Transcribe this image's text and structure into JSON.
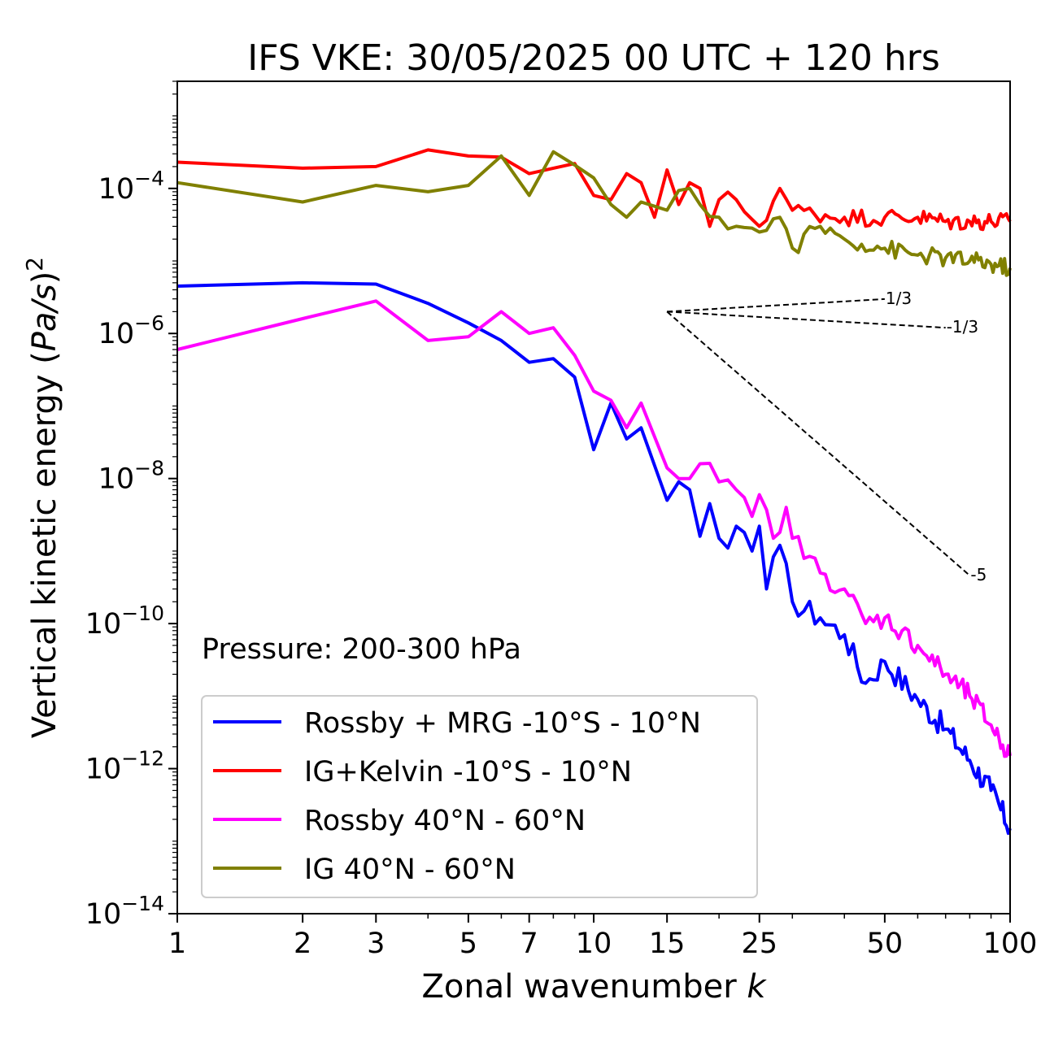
{
  "chart_data": {
    "type": "line",
    "title": "IFS VKE: 30/05/2025 00 UTC + 120 hrs",
    "xlabel": "Zonal wavenumber k",
    "ylabel": "Vertical kinetic energy (Pa/s)²",
    "xscale": "log",
    "yscale": "log",
    "xlim": [
      1,
      100
    ],
    "ylim": [
      1e-14,
      0.003
    ],
    "x_ticks": [
      1,
      2,
      3,
      5,
      7,
      10,
      15,
      25,
      50,
      100
    ],
    "x_tick_labels": [
      "1",
      "2",
      "3",
      "5",
      "7",
      "10",
      "15",
      "25",
      "50",
      "100"
    ],
    "y_ticks": [
      {
        "value": 0.0001,
        "base": "10",
        "exp": "−4"
      },
      {
        "value": 1e-06,
        "base": "10",
        "exp": "−6"
      },
      {
        "value": 1e-08,
        "base": "10",
        "exp": "−8"
      },
      {
        "value": 1e-10,
        "base": "10",
        "exp": "−10"
      },
      {
        "value": 1e-12,
        "base": "10",
        "exp": "−12"
      },
      {
        "value": 1e-14,
        "base": "10",
        "exp": "−14"
      }
    ],
    "annotation": "Pressure: 200-300 hPa",
    "legend_position": "lower-left",
    "series": [
      {
        "name": "Rossby + MRG -10°S - 10°N",
        "color": "#0000ff",
        "anchors": [
          [
            1,
            4.5e-06
          ],
          [
            2,
            5e-06
          ],
          [
            3,
            4.8e-06
          ],
          [
            4,
            2.6e-06
          ],
          [
            5,
            1.4e-06
          ],
          [
            6,
            8e-07
          ],
          [
            7,
            4e-07
          ],
          [
            8,
            4.5e-07
          ],
          [
            9,
            2.5e-07
          ],
          [
            10,
            2.5e-08
          ],
          [
            11,
            1.1e-07
          ],
          [
            12,
            3.5e-08
          ],
          [
            13,
            5e-08
          ],
          [
            15,
            5e-09
          ],
          [
            16,
            9e-09
          ],
          [
            17,
            7e-09
          ],
          [
            18,
            1.6e-09
          ],
          [
            19,
            4.5e-09
          ],
          [
            20,
            1.5e-09
          ],
          [
            21,
            1.1e-09
          ],
          [
            22,
            2.2e-09
          ],
          [
            23,
            1.8e-09
          ],
          [
            24,
            1e-09
          ],
          [
            25,
            2.2e-09
          ],
          [
            26,
            3e-10
          ],
          [
            28,
            1.2e-09
          ],
          [
            30,
            2e-10
          ],
          [
            35,
            1.2e-10
          ],
          [
            40,
            7e-11
          ],
          [
            45,
            1.5e-11
          ],
          [
            50,
            3e-11
          ],
          [
            60,
            9e-12
          ],
          [
            70,
            3.5e-12
          ],
          [
            80,
            1.3e-12
          ],
          [
            90,
            5e-13
          ],
          [
            100,
            1.5e-13
          ]
        ],
        "noise": 0.35
      },
      {
        "name": "IG+Kelvin -10°S - 10°N",
        "color": "#ff0000",
        "anchors": [
          [
            1,
            0.00023
          ],
          [
            2,
            0.00019
          ],
          [
            3,
            0.0002
          ],
          [
            4,
            0.00034
          ],
          [
            5,
            0.00028
          ],
          [
            6,
            0.00027
          ],
          [
            7,
            0.00016
          ],
          [
            8,
            0.00019
          ],
          [
            9,
            0.00022
          ],
          [
            10,
            8e-05
          ],
          [
            11,
            7e-05
          ],
          [
            12,
            0.00016
          ],
          [
            13,
            0.00012
          ],
          [
            14,
            4e-05
          ],
          [
            15,
            0.00018
          ],
          [
            16,
            6e-05
          ],
          [
            17,
            0.00012
          ],
          [
            18,
            0.0001
          ],
          [
            19,
            3e-05
          ],
          [
            20,
            7e-05
          ],
          [
            22,
            7e-05
          ],
          [
            25,
            3e-05
          ],
          [
            28,
            0.0001
          ],
          [
            30,
            5e-05
          ],
          [
            40,
            4e-05
          ],
          [
            50,
            4e-05
          ],
          [
            60,
            4e-05
          ],
          [
            70,
            3.5e-05
          ],
          [
            80,
            3.5e-05
          ],
          [
            90,
            3.5e-05
          ],
          [
            100,
            3.5e-05
          ]
        ],
        "noise": 0.25
      },
      {
        "name": "Rossby 40°N - 60°N",
        "color": "#ff00ff",
        "anchors": [
          [
            1,
            6e-07
          ],
          [
            2,
            1.6e-06
          ],
          [
            3,
            2.8e-06
          ],
          [
            4,
            8e-07
          ],
          [
            5,
            9e-07
          ],
          [
            6,
            2e-06
          ],
          [
            7,
            1e-06
          ],
          [
            8,
            1.2e-06
          ],
          [
            9,
            5e-07
          ],
          [
            10,
            1.6e-07
          ],
          [
            11,
            1.2e-07
          ],
          [
            12,
            5e-08
          ],
          [
            13,
            1.1e-07
          ],
          [
            15,
            1.4e-08
          ],
          [
            16,
            1e-08
          ],
          [
            17,
            1e-08
          ],
          [
            18,
            1.6e-08
          ],
          [
            20,
            9e-09
          ],
          [
            22,
            7e-09
          ],
          [
            24,
            3e-09
          ],
          [
            25,
            6e-09
          ],
          [
            27,
            1.5e-09
          ],
          [
            29,
            4e-09
          ],
          [
            30,
            1.5e-09
          ],
          [
            35,
            5e-10
          ],
          [
            40,
            3e-10
          ],
          [
            45,
            1e-10
          ],
          [
            50,
            1.2e-10
          ],
          [
            60,
            5e-11
          ],
          [
            70,
            2e-11
          ],
          [
            80,
            1e-11
          ],
          [
            90,
            4e-12
          ],
          [
            100,
            1.5e-12
          ]
        ],
        "noise": 0.3
      },
      {
        "name": "IG 40°N - 60°N",
        "color": "#808000",
        "anchors": [
          [
            1,
            0.00012
          ],
          [
            2,
            6.5e-05
          ],
          [
            3,
            0.00011
          ],
          [
            4,
            9e-05
          ],
          [
            5,
            0.00011
          ],
          [
            6,
            0.00028
          ],
          [
            7,
            8e-05
          ],
          [
            8,
            0.00032
          ],
          [
            9,
            0.00021
          ],
          [
            10,
            0.00014
          ],
          [
            11,
            6e-05
          ],
          [
            12,
            4e-05
          ],
          [
            13,
            6.5e-05
          ],
          [
            15,
            5e-05
          ],
          [
            17,
            0.0001
          ],
          [
            18,
            6e-05
          ],
          [
            20,
            4e-05
          ],
          [
            22,
            3e-05
          ],
          [
            25,
            2.5e-05
          ],
          [
            28,
            4e-05
          ],
          [
            30,
            1.5e-05
          ],
          [
            35,
            3e-05
          ],
          [
            40,
            2e-05
          ],
          [
            50,
            1.5e-05
          ],
          [
            60,
            1.2e-05
          ],
          [
            70,
            1.1e-05
          ],
          [
            80,
            1e-05
          ],
          [
            90,
            9e-06
          ],
          [
            100,
            8e-06
          ]
        ],
        "noise": 0.25
      }
    ],
    "reference_slopes": [
      {
        "label": "1/3",
        "x0": 15,
        "y0": 2e-06,
        "x1": 50,
        "y1": 2.98e-06
      },
      {
        "label": "-1/3",
        "x0": 15,
        "y0": 2e-06,
        "x1": 70,
        "y1": 1.2e-06
      },
      {
        "label": "-5",
        "x0": 15,
        "y0": 2e-06,
        "x1": 80,
        "y1": 4.6e-10
      }
    ]
  }
}
